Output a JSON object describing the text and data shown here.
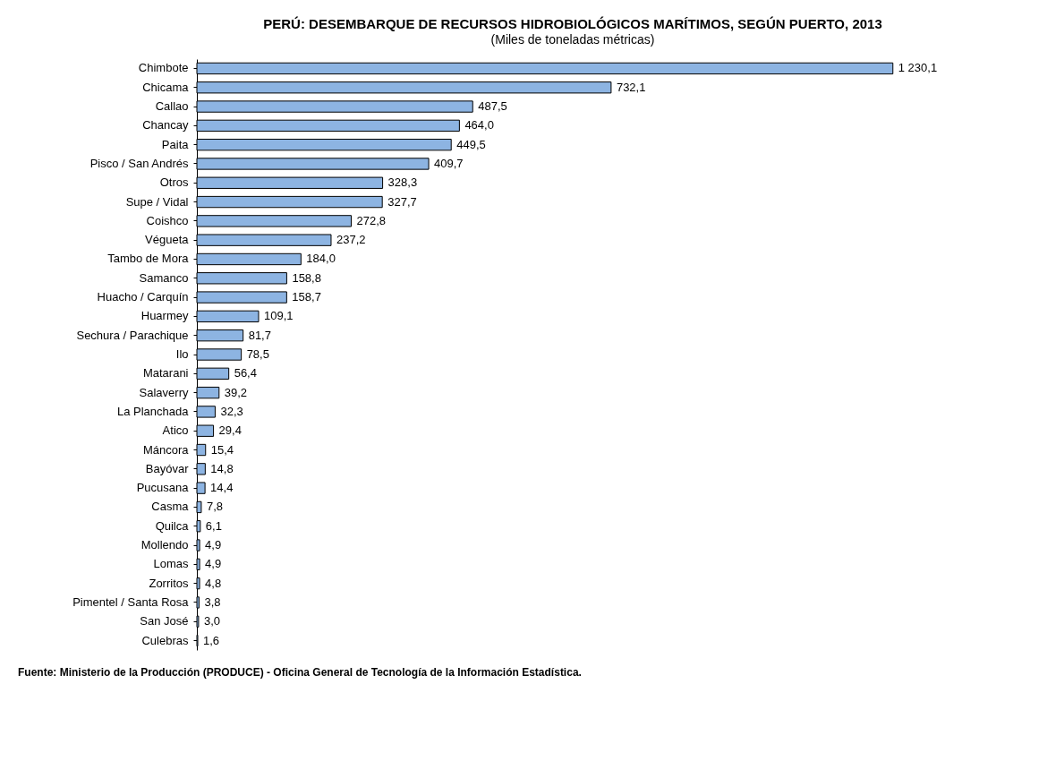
{
  "chart_data": {
    "type": "bar",
    "orientation": "horizontal",
    "title": "PERÚ: DESEMBARQUE DE RECURSOS HIDROBIOLÓGICOS MARÍTIMOS, SEGÚN PUERTO, 2013",
    "subtitle": "(Miles de toneladas métricas)",
    "categories": [
      "Chimbote",
      "Chicama",
      "Callao",
      "Chancay",
      "Paita",
      "Pisco / San Andrés",
      "Otros",
      "Supe / Vidal",
      "Coishco",
      "Végueta",
      "Tambo de Mora",
      "Samanco",
      "Huacho / Carquín",
      "Huarmey",
      "Sechura / Parachique",
      "Ilo",
      "Matarani",
      "Salaverry",
      "La Planchada",
      "Atico",
      "Máncora",
      "Bayóvar",
      "Pucusana",
      "Casma",
      "Quilca",
      "Mollendo",
      "Lomas",
      "Zorritos",
      "Pimentel / Santa Rosa",
      "San José",
      "Culebras"
    ],
    "values": [
      1230.1,
      732.1,
      487.5,
      464.0,
      449.5,
      409.7,
      328.3,
      327.7,
      272.8,
      237.2,
      184.0,
      158.8,
      158.7,
      109.1,
      81.7,
      78.5,
      56.4,
      39.2,
      32.3,
      29.4,
      15.4,
      14.8,
      14.4,
      7.8,
      6.1,
      4.9,
      4.9,
      4.8,
      3.8,
      3.0,
      1.6
    ],
    "value_labels": [
      "1 230,1",
      "732,1",
      "487,5",
      "464,0",
      "449,5",
      "409,7",
      "328,3",
      "327,7",
      "272,8",
      "237,2",
      "184,0",
      "158,8",
      "158,7",
      "109,1",
      "81,7",
      "78,5",
      "56,4",
      "39,2",
      "32,3",
      "29,4",
      "15,4",
      "14,8",
      "14,4",
      "7,8",
      "6,1",
      "4,9",
      "4,9",
      "4,8",
      "3,8",
      "3,0",
      "1,6"
    ],
    "color": "#8db4e2",
    "grid": false,
    "annotations": [
      "Fuente: Ministerio de la Producción (PRODUCE) - Oficina General de Tecnología de la Información Estadística."
    ]
  }
}
